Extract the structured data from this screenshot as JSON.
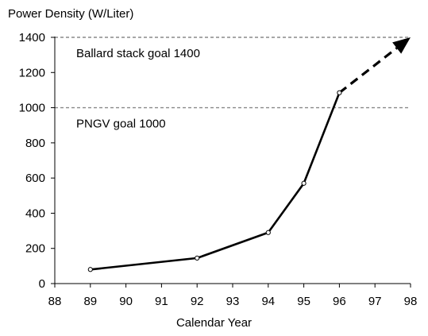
{
  "chart_data": {
    "type": "line",
    "title": "",
    "ylabel": "Power Density (W/Liter)",
    "xlabel": "Calendar Year",
    "xlim": [
      88,
      98
    ],
    "ylim": [
      0,
      1400
    ],
    "x_ticks": [
      88,
      89,
      90,
      91,
      92,
      93,
      94,
      95,
      96,
      97,
      98
    ],
    "y_ticks": [
      0,
      200,
      400,
      600,
      800,
      1000,
      1200,
      1400
    ],
    "grid": false,
    "series": [
      {
        "style": "solid-with-open-circle-markers",
        "points": [
          {
            "x": 89,
            "y": 80
          },
          {
            "x": 92,
            "y": 145
          },
          {
            "x": 94,
            "y": 290
          },
          {
            "x": 95,
            "y": 570
          },
          {
            "x": 96,
            "y": 1085
          }
        ]
      },
      {
        "style": "dashed-arrow-projection",
        "points": [
          {
            "x": 96,
            "y": 1085
          },
          {
            "x": 98,
            "y": 1400
          }
        ]
      }
    ],
    "reference_lines": [
      {
        "y": 1400,
        "label": "Ballard stack goal 1400"
      },
      {
        "y": 1000,
        "label": "PNGV  goal 1000"
      }
    ]
  }
}
